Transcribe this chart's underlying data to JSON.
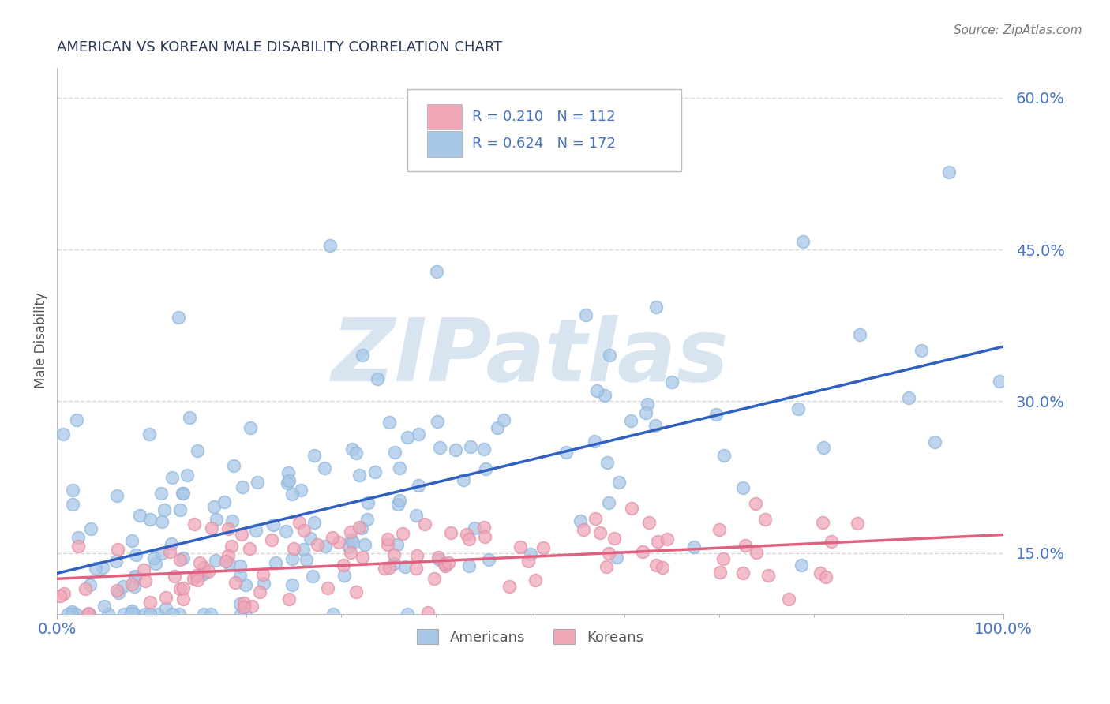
{
  "title": "AMERICAN VS KOREAN MALE DISABILITY CORRELATION CHART",
  "source_text": "Source: ZipAtlas.com",
  "ylabel": "Male Disability",
  "xlabel": "",
  "xlim": [
    0,
    1
  ],
  "ylim": [
    0.09,
    0.63
  ],
  "yticks": [
    0.15,
    0.3,
    0.45,
    0.6
  ],
  "ytick_labels": [
    "15.0%",
    "30.0%",
    "45.0%",
    "60.0%"
  ],
  "xtick_labels": [
    "0.0%",
    "100.0%"
  ],
  "xticks": [
    0.0,
    1.0
  ],
  "americans_color": "#A8C8E8",
  "koreans_color": "#F0A8B8",
  "americans_edge_color": "#90B8DC",
  "koreans_edge_color": "#E090A8",
  "americans_line_color": "#3060C0",
  "koreans_line_color": "#E06080",
  "americans_R": 0.624,
  "americans_N": 172,
  "koreans_R": 0.21,
  "koreans_N": 112,
  "background_color": "#FFFFFF",
  "grid_color": "#CCCCCC",
  "title_color": "#2F3B5C",
  "axis_label_color": "#555555",
  "tick_label_color": "#4472C4",
  "watermark_color": "#D8E4F0",
  "legend_color": "#4472C4",
  "legend_pink_color": "#E06080"
}
